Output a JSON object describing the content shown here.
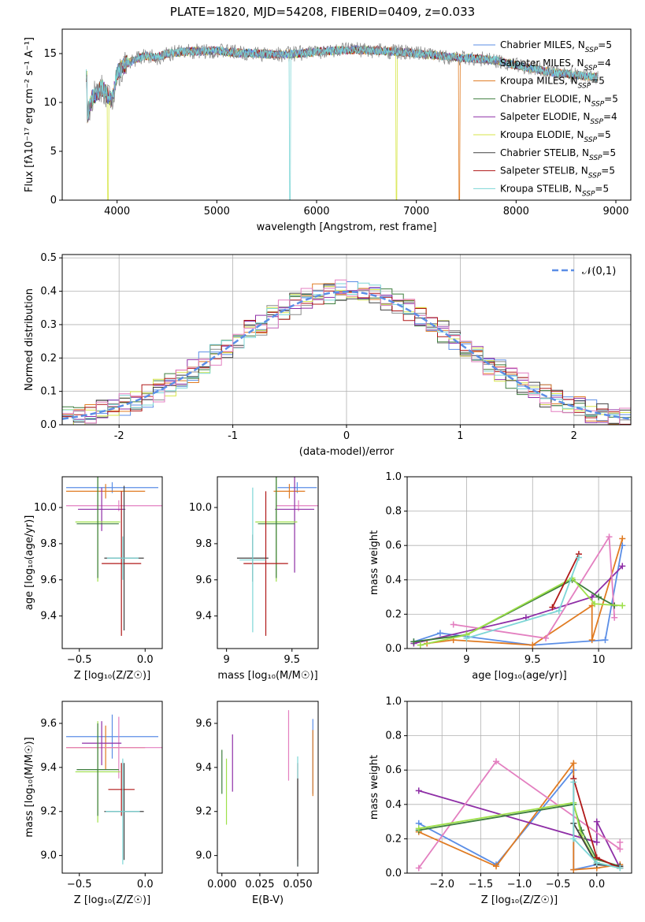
{
  "figure_title": "PLATE=1820, MJD=54208, FIBERID=0409, z=0.033",
  "colors": {
    "chabrier_miles": "#5b8ee6",
    "salpeter_miles": "#8c8c8c",
    "kroupa_miles": "#e07b22",
    "chabrier_elodie": "#3d7d3d",
    "salpeter_elodie": "#8e2ea6",
    "kroupa_elodie": "#d7e64a",
    "chabrier_stelib": "#404040",
    "salpeter_stelib": "#b01818",
    "kroupa_stelib": "#7dd6d6",
    "normal_curve": "#5b8ee6",
    "pink": "#e37fc0",
    "lime": "#9ee04a"
  },
  "chart_data": [
    {
      "type": "line",
      "panel": "spectrum",
      "xlabel": "wavelength [Angstrom, rest frame]",
      "ylabel": "Flux [fλ10⁻¹⁷ erg cm⁻² s⁻¹ A⁻¹]",
      "xlim": [
        3450,
        9150
      ],
      "ylim": [
        0,
        17.5
      ],
      "xticks": [
        4000,
        5000,
        6000,
        7000,
        8000,
        9000
      ],
      "yticks": [
        0,
        5,
        10,
        15
      ],
      "legend": [
        "Chabrier MILES, N_SSP=5",
        "Salpeter MILES, N_SSP=4",
        "Kroupa MILES, N_SSP=5",
        "Chabrier ELODIE, N_SSP=5",
        "Salpeter ELODIE, N_SSP=4",
        "Kroupa ELODIE, N_SSP=5",
        "Chabrier STELIB, N_SSP=5",
        "Salpeter STELIB, N_SSP=5",
        "Kroupa STELIB, N_SSP=5"
      ],
      "legend_position": "upper-right",
      "data_x": [
        3700,
        3750,
        3800,
        3850,
        3900,
        3950,
        4000,
        4100,
        4200,
        4300,
        4400,
        4500,
        4700,
        5000,
        5200,
        5400,
        5600,
        5800,
        6000,
        6200,
        6400,
        6600,
        6800,
        7000,
        7200,
        7400,
        7600,
        7800,
        8000,
        8200,
        8400,
        8600,
        8800
      ],
      "data_y": [
        8.5,
        10.5,
        11.0,
        11.5,
        10.8,
        10.2,
        13.0,
        14.0,
        14.5,
        14.8,
        14.6,
        15.0,
        15.2,
        15.3,
        15.1,
        15.0,
        14.9,
        15.0,
        15.2,
        15.3,
        15.4,
        15.3,
        15.2,
        15.0,
        14.8,
        14.6,
        14.5,
        14.3,
        13.8,
        13.4,
        13.0,
        12.8,
        12.6
      ],
      "dropouts": [
        {
          "x": 3910,
          "color_key": "kroupa_elodie"
        },
        {
          "x": 5735,
          "color_key": "kroupa_stelib"
        },
        {
          "x": 6800,
          "color_key": "kroupa_elodie"
        },
        {
          "x": 7430,
          "color_key": "kroupa_miles"
        }
      ]
    },
    {
      "type": "histogram",
      "panel": "residuals",
      "xlabel": "(data-model)/error",
      "ylabel": "Normed distribution",
      "xlim": [
        -2.5,
        2.5
      ],
      "ylim": [
        0,
        0.51
      ],
      "xticks": [
        -2,
        -1,
        0,
        1,
        2
      ],
      "yticks": [
        0.0,
        0.1,
        0.2,
        0.3,
        0.4,
        0.5
      ],
      "legend": [
        "𝒩(0,1)"
      ],
      "legend_position": "upper-right",
      "grid": true,
      "bin_width": 0.1,
      "center_peak": 0.4,
      "sigma": 1.0
    },
    {
      "type": "errorbar",
      "panel": "age_vs_Z",
      "xlabel": "Z [log₁₀(Z/Z☉)]",
      "ylabel": "age  [log₁₀(age/yr)]",
      "xlim": [
        -0.63,
        0.13
      ],
      "ylim": [
        9.22,
        10.17
      ],
      "xticks": [
        -0.5,
        0.0
      ],
      "xtick_labels": [
        "−0.5",
        "0.0"
      ],
      "yticks": [
        9.4,
        9.6,
        9.8,
        10.0
      ],
      "points": [
        {
          "x": -0.25,
          "y": 10.11,
          "xerr": 0.35,
          "yerr": 0.03,
          "color_key": "chabrier_miles"
        },
        {
          "x": -0.3,
          "y": 10.09,
          "xerr": 0.3,
          "yerr": 0.04,
          "color_key": "kroupa_miles"
        },
        {
          "x": -0.2,
          "y": 10.01,
          "xerr": 0.4,
          "yerr": 0.03,
          "color_key": "pink"
        },
        {
          "x": -0.33,
          "y": 9.99,
          "xerr": 0.18,
          "yerr": 0.12,
          "color_key": "salpeter_elodie"
        },
        {
          "x": -0.36,
          "y": 9.92,
          "xerr": 0.17,
          "yerr": 0.33,
          "color_key": "lime"
        },
        {
          "x": -0.36,
          "y": 9.91,
          "xerr": 0.16,
          "yerr": 0.3,
          "color_key": "chabrier_elodie"
        },
        {
          "x": -0.16,
          "y": 9.72,
          "xerr": 0.15,
          "yerr": 0.4,
          "color_key": "chabrier_stelib"
        },
        {
          "x": -0.18,
          "y": 9.69,
          "xerr": 0.15,
          "yerr": 0.4,
          "color_key": "salpeter_stelib"
        },
        {
          "x": -0.17,
          "y": 9.72,
          "xerr": 0.12,
          "yerr": 0.12,
          "color_key": "kroupa_stelib"
        }
      ]
    },
    {
      "type": "errorbar",
      "panel": "age_vs_mass",
      "xlabel": "mass [log₁₀(M/M☉)]",
      "ylabel": "",
      "xlim": [
        8.93,
        9.7
      ],
      "ylim": [
        9.22,
        10.17
      ],
      "xticks": [
        9.0,
        9.5
      ],
      "yticks": [
        9.4,
        9.6,
        9.8,
        10.0
      ],
      "points": [
        {
          "x": 9.54,
          "y": 10.11,
          "xerr": 0.15,
          "yerr": 0.03,
          "color_key": "chabrier_miles"
        },
        {
          "x": 9.48,
          "y": 10.09,
          "xerr": 0.12,
          "yerr": 0.04,
          "color_key": "kroupa_miles"
        },
        {
          "x": 9.55,
          "y": 10.01,
          "xerr": 0.17,
          "yerr": 0.03,
          "color_key": "pink"
        },
        {
          "x": 9.52,
          "y": 9.99,
          "xerr": 0.15,
          "yerr": 0.35,
          "color_key": "salpeter_elodie"
        },
        {
          "x": 9.38,
          "y": 9.92,
          "xerr": 0.16,
          "yerr": 0.33,
          "color_key": "lime"
        },
        {
          "x": 9.38,
          "y": 9.91,
          "xerr": 0.14,
          "yerr": 0.3,
          "color_key": "chabrier_elodie"
        },
        {
          "x": 9.2,
          "y": 9.72,
          "xerr": 0.12,
          "yerr": 0.13,
          "color_key": "chabrier_stelib"
        },
        {
          "x": 9.3,
          "y": 9.69,
          "xerr": 0.17,
          "yerr": 0.4,
          "color_key": "salpeter_stelib"
        },
        {
          "x": 9.2,
          "y": 9.71,
          "xerr": 0.1,
          "yerr": 0.4,
          "color_key": "kroupa_stelib"
        }
      ]
    },
    {
      "type": "line",
      "panel": "mass_weight_vs_age",
      "xlabel": "age  [log₁₀(age/yr)]",
      "ylabel": "mass weight",
      "xlim": [
        8.55,
        10.25
      ],
      "ylim": [
        0,
        1.0
      ],
      "xticks": [
        9.0,
        9.5,
        10.0
      ],
      "yticks": [
        0.0,
        0.2,
        0.4,
        0.6,
        0.8,
        1.0
      ],
      "grid": true,
      "series": [
        {
          "color_key": "chabrier_miles",
          "x": [
            8.6,
            8.8,
            9.5,
            10.05,
            10.18
          ],
          "y": [
            0.04,
            0.09,
            0.02,
            0.05,
            0.6
          ]
        },
        {
          "color_key": "kroupa_miles",
          "x": [
            8.7,
            8.9,
            9.5,
            9.95,
            9.95,
            10.18
          ],
          "y": [
            0.03,
            0.05,
            0.02,
            0.25,
            0.05,
            0.64
          ]
        },
        {
          "color_key": "salpeter_elodie",
          "x": [
            8.6,
            9.45,
            9.95,
            10.18
          ],
          "y": [
            0.03,
            0.18,
            0.3,
            0.48
          ]
        },
        {
          "color_key": "pink",
          "x": [
            8.9,
            9.6,
            10.08,
            10.12
          ],
          "y": [
            0.14,
            0.06,
            0.65,
            0.18
          ]
        },
        {
          "color_key": "chabrier_elodie",
          "x": [
            8.6,
            9.0,
            9.8,
            10.0,
            10.12
          ],
          "y": [
            0.04,
            0.08,
            0.4,
            0.3,
            0.25
          ]
        },
        {
          "color_key": "lime",
          "x": [
            8.65,
            9.0,
            9.8,
            9.97,
            10.18
          ],
          "y": [
            0.02,
            0.08,
            0.41,
            0.26,
            0.25
          ]
        },
        {
          "color_key": "salpeter_stelib",
          "x": [
            9.65,
            9.85
          ],
          "y": [
            0.24,
            0.55
          ]
        },
        {
          "color_key": "kroupa_stelib",
          "x": [
            9.0,
            9.7,
            9.85
          ],
          "y": [
            0.06,
            0.22,
            0.53
          ]
        }
      ]
    },
    {
      "type": "errorbar",
      "panel": "mass_vs_Z",
      "xlabel": "Z [log₁₀(Z/Z☉)]",
      "ylabel": "mass [log₁₀(M/M☉)]",
      "xlim": [
        -0.63,
        0.13
      ],
      "ylim": [
        8.92,
        9.7
      ],
      "xticks": [
        -0.5,
        0.0
      ],
      "xtick_labels": [
        "−0.5",
        "0.0"
      ],
      "yticks": [
        9.0,
        9.2,
        9.4,
        9.6
      ],
      "points": [
        {
          "x": -0.25,
          "y": 9.54,
          "xerr": 0.35,
          "yerr": 0.1,
          "color_key": "chabrier_miles"
        },
        {
          "x": -0.3,
          "y": 9.49,
          "xerr": 0.3,
          "yerr": 0.1,
          "color_key": "kroupa_miles"
        },
        {
          "x": -0.2,
          "y": 9.49,
          "xerr": 0.4,
          "yerr": 0.14,
          "color_key": "pink"
        },
        {
          "x": -0.33,
          "y": 9.51,
          "xerr": 0.15,
          "yerr": 0.1,
          "color_key": "salpeter_elodie"
        },
        {
          "x": -0.36,
          "y": 9.38,
          "xerr": 0.17,
          "yerr": 0.23,
          "color_key": "lime"
        },
        {
          "x": -0.36,
          "y": 9.39,
          "xerr": 0.16,
          "yerr": 0.21,
          "color_key": "chabrier_elodie"
        },
        {
          "x": -0.16,
          "y": 9.2,
          "xerr": 0.15,
          "yerr": 0.22,
          "color_key": "chabrier_stelib"
        },
        {
          "x": -0.18,
          "y": 9.3,
          "xerr": 0.1,
          "yerr": 0.12,
          "color_key": "salpeter_stelib"
        },
        {
          "x": -0.17,
          "y": 9.2,
          "xerr": 0.13,
          "yerr": 0.24,
          "color_key": "kroupa_stelib"
        }
      ]
    },
    {
      "type": "errorbar",
      "panel": "mass_vs_EBV",
      "xlabel": "E(B-V)",
      "ylabel": "",
      "xlim": [
        -0.003,
        0.0635
      ],
      "ylim": [
        8.92,
        9.7
      ],
      "xticks": [
        0.0,
        0.025,
        0.05
      ],
      "xtick_labels": [
        "0.000",
        "0.025",
        "0.050"
      ],
      "yticks": [
        9.0,
        9.2,
        9.4,
        9.6
      ],
      "points": [
        {
          "x": 0.0,
          "y": 9.38,
          "yerr": 0.1,
          "color_key": "chabrier_elodie"
        },
        {
          "x": 0.003,
          "y": 9.29,
          "yerr": 0.15,
          "color_key": "lime"
        },
        {
          "x": 0.007,
          "y": 9.42,
          "yerr": 0.13,
          "color_key": "salpeter_elodie"
        },
        {
          "x": 0.044,
          "y": 9.5,
          "yerr": 0.16,
          "color_key": "pink"
        },
        {
          "x": 0.05,
          "y": 9.2,
          "yerr": 0.22,
          "color_key": "salpeter_stelib"
        },
        {
          "x": 0.05,
          "y": 9.2,
          "yerr": 0.25,
          "color_key": "kroupa_stelib"
        },
        {
          "x": 0.05,
          "y": 9.15,
          "yerr": 0.2,
          "color_key": "chabrier_stelib"
        },
        {
          "x": 0.06,
          "y": 9.45,
          "yerr": 0.17,
          "color_key": "chabrier_miles"
        },
        {
          "x": 0.06,
          "y": 9.42,
          "yerr": 0.15,
          "color_key": "kroupa_miles"
        }
      ]
    },
    {
      "type": "line",
      "panel": "mass_weight_vs_Z",
      "xlabel": "Z [log₁₀(Z/Z☉)]",
      "ylabel": "mass weight",
      "xlim": [
        -2.45,
        0.45
      ],
      "ylim": [
        0,
        1.0
      ],
      "xticks": [
        -2.0,
        -1.5,
        -1.0,
        -0.5,
        0.0
      ],
      "xtick_labels": [
        "−2.0",
        "−1.5",
        "−1.0",
        "−0.5",
        "0.0"
      ],
      "yticks": [
        0.0,
        0.2,
        0.4,
        0.6,
        0.8,
        1.0
      ],
      "grid": true,
      "series": [
        {
          "color_key": "chabrier_miles",
          "x": [
            -2.3,
            -1.3,
            -0.3,
            -0.3,
            0.0,
            0.3
          ],
          "y": [
            0.29,
            0.05,
            0.6,
            0.02,
            0.05,
            0.04
          ]
        },
        {
          "color_key": "kroupa_miles",
          "x": [
            -2.3,
            -1.3,
            -0.3,
            -0.3,
            0.0,
            0.3
          ],
          "y": [
            0.24,
            0.04,
            0.64,
            0.02,
            0.03,
            0.05
          ]
        },
        {
          "color_key": "salpeter_elodie",
          "x": [
            -2.3,
            0.0,
            0.0,
            0.3
          ],
          "y": [
            0.48,
            0.18,
            0.3,
            0.03
          ]
        },
        {
          "color_key": "pink",
          "x": [
            -2.3,
            -1.3,
            0.3,
            0.3
          ],
          "y": [
            0.03,
            0.65,
            0.14,
            0.18
          ]
        },
        {
          "color_key": "chabrier_elodie",
          "x": [
            -2.3,
            -0.3,
            -0.2,
            0.0,
            0.3
          ],
          "y": [
            0.25,
            0.4,
            0.25,
            0.08,
            0.04
          ]
        },
        {
          "color_key": "lime",
          "x": [
            -2.3,
            -0.3,
            -0.2,
            0.0,
            0.3
          ],
          "y": [
            0.26,
            0.41,
            0.22,
            0.06,
            0.03
          ]
        },
        {
          "color_key": "chabrier_stelib",
          "x": [
            -0.3,
            0.0,
            0.3
          ],
          "y": [
            0.29,
            0.05,
            0.04
          ]
        },
        {
          "color_key": "salpeter_stelib",
          "x": [
            -0.3,
            0.0,
            0.3
          ],
          "y": [
            0.55,
            0.09,
            0.03
          ]
        },
        {
          "color_key": "kroupa_stelib",
          "x": [
            -0.3,
            -0.3,
            0.0,
            0.3
          ],
          "y": [
            0.53,
            0.2,
            0.06,
            0.03
          ]
        }
      ]
    }
  ]
}
